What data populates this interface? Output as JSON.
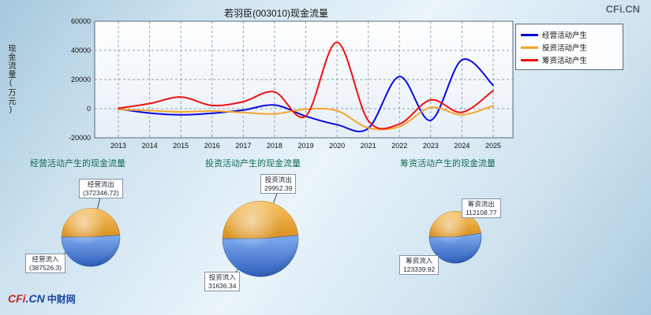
{
  "watermark": "CFi.CN",
  "footer_logo": {
    "cfi": "CFi",
    "cn": ".CN",
    "site": "中财网"
  },
  "colors": {
    "section_title": "#0e6b52",
    "grid": "#8fa0b0",
    "plot_border": "#55687a",
    "pie_gradients": {
      "out": [
        "#f9c468",
        "#d8901e"
      ],
      "in": [
        "#7fabef",
        "#3061bd"
      ]
    }
  },
  "chart_data": [
    {
      "type": "line",
      "title": "若羽臣(003010)现金流量",
      "ylabel": "现金流量(万元)",
      "xlabel": "",
      "x": [
        2013,
        2014,
        2015,
        2016,
        2017,
        2018,
        2019,
        2020,
        2021,
        2022,
        2023,
        2024,
        2025
      ],
      "ylim": [
        -20000,
        60000
      ],
      "yticks": [
        -20000,
        0,
        20000,
        40000,
        60000
      ],
      "grid": true,
      "legend_position": "top-right",
      "series": [
        {
          "name": "经营活动产生",
          "color": "#0a0ae0",
          "values": [
            -200,
            -3000,
            -4200,
            -3200,
            -1000,
            2500,
            -5200,
            -11000,
            -13500,
            22000,
            -8000,
            33500,
            16000
          ]
        },
        {
          "name": "投资活动产生",
          "color": "#f5a52a",
          "values": [
            -600,
            -1300,
            -2200,
            -1600,
            -2600,
            -3600,
            -400,
            -1400,
            -13200,
            -12300,
            800,
            -4200,
            2000
          ]
        },
        {
          "name": "筹资活动产生",
          "color": "#ee1212",
          "values": [
            300,
            3500,
            8000,
            2200,
            4800,
            11500,
            -5000,
            45500,
            -8200,
            -10500,
            6000,
            -2500,
            12500
          ]
        }
      ]
    },
    {
      "type": "pie",
      "title": "经营活动产生的现金流量",
      "slices": [
        {
          "label": "经营流出",
          "display": "(372346.72)",
          "value": 372346.72,
          "color": "#e8a33d"
        },
        {
          "label": "经营流入",
          "display": "(387526.3)",
          "value": 387526.3,
          "color": "#4a80d2"
        }
      ]
    },
    {
      "type": "pie",
      "title": "投资活动产生的现金流量",
      "slices": [
        {
          "label": "投资流出",
          "display": "29952.39",
          "value": 29952.39,
          "color": "#e8a33d"
        },
        {
          "label": "投资流入",
          "display": "31636.34",
          "value": 31636.34,
          "color": "#4a80d2"
        }
      ]
    },
    {
      "type": "pie",
      "title": "筹资活动产生的现金流量",
      "slices": [
        {
          "label": "筹资流出",
          "display": "112108.77",
          "value": 112108.77,
          "color": "#e8a33d"
        },
        {
          "label": "筹资流入",
          "display": "123339.92",
          "value": 123339.92,
          "color": "#4a80d2"
        }
      ]
    }
  ]
}
